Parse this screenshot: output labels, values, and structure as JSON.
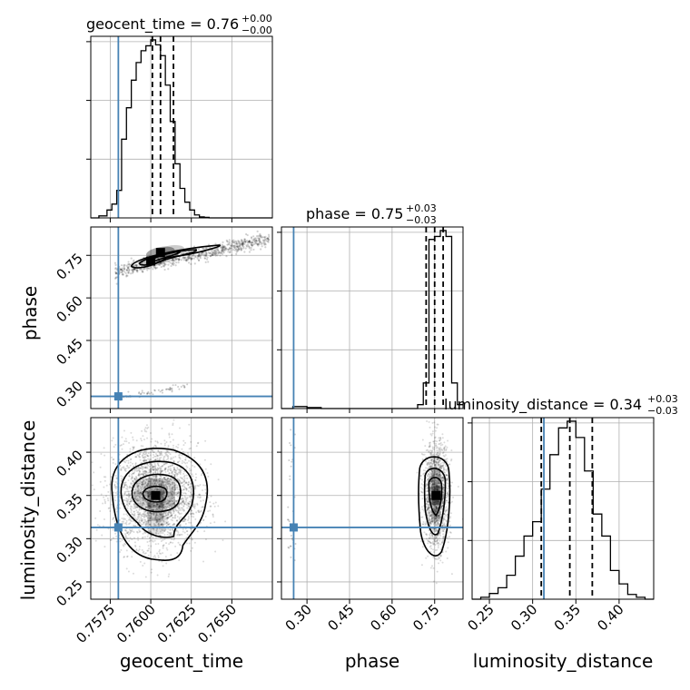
{
  "chart_data": {
    "type": "corner",
    "parameters": [
      {
        "name": "geocent_time",
        "label": "geocent_time",
        "range": [
          0.7563,
          0.7675
        ],
        "ticks": [
          0.7575,
          0.76,
          0.7625,
          0.765
        ],
        "tick_labels": [
          "0.7575",
          "0.7600",
          "0.7625",
          "0.7650"
        ],
        "truth": 0.758,
        "median": 0.7606,
        "lower": 0.7601,
        "upper": 0.7614,
        "title_value": "0.76",
        "title_plus": "+0.00",
        "title_minus": "−0.00",
        "title_prefix": "geocent_time = ",
        "hist_edges": [
          0.7563,
          0.7568,
          0.7573,
          0.7576,
          0.7579,
          0.7582,
          0.7585,
          0.7588,
          0.7591,
          0.7594,
          0.7597,
          0.76,
          0.7603,
          0.7606,
          0.7609,
          0.7612,
          0.7615,
          0.7618,
          0.7621,
          0.7624,
          0.7627,
          0.763,
          0.7633,
          0.7636,
          0.7639,
          0.7642,
          0.7647,
          0.7652,
          0.766,
          0.7675
        ],
        "hist_counts": [
          0,
          2,
          8,
          14,
          28,
          80,
          112,
          140,
          158,
          170,
          175,
          181,
          176,
          165,
          135,
          98,
          55,
          30,
          16,
          8,
          3,
          1,
          0.5,
          0,
          0,
          0,
          0,
          0,
          0
        ]
      },
      {
        "name": "phase",
        "label": "phase",
        "range": [
          0.21,
          0.85
        ],
        "ticks": [
          0.3,
          0.45,
          0.6,
          0.75
        ],
        "tick_labels": [
          "0.30",
          "0.45",
          "0.60",
          "0.75"
        ],
        "truth": 0.253,
        "median": 0.75,
        "lower": 0.72,
        "upper": 0.78,
        "title_value": "0.75",
        "title_plus": "+0.03",
        "title_minus": "−0.03",
        "title_prefix": "phase = ",
        "hist_edges": [
          0.21,
          0.25,
          0.3,
          0.35,
          0.4,
          0.45,
          0.5,
          0.55,
          0.6,
          0.65,
          0.67,
          0.69,
          0.71,
          0.73,
          0.75,
          0.77,
          0.79,
          0.81,
          0.83,
          0.85
        ],
        "hist_counts": [
          0,
          2,
          1,
          0,
          0,
          0,
          0,
          0,
          0,
          0,
          0,
          4,
          26,
          172,
          175,
          181,
          175,
          26,
          4
        ]
      },
      {
        "name": "luminosity_distance",
        "label": "luminosity_distance",
        "range": [
          0.23,
          0.44
        ],
        "ticks": [
          0.25,
          0.3,
          0.35,
          0.4
        ],
        "tick_labels": [
          "0.25",
          "0.30",
          "0.35",
          "0.40"
        ],
        "truth": 0.313,
        "median": 0.343,
        "lower": 0.31,
        "upper": 0.369,
        "title_value": "0.34",
        "title_plus": "+0.03",
        "title_minus": "−0.03",
        "title_prefix": "luminosity_distance = ",
        "hist_edges": [
          0.23,
          0.24,
          0.25,
          0.26,
          0.27,
          0.28,
          0.29,
          0.3,
          0.31,
          0.32,
          0.33,
          0.34,
          0.35,
          0.36,
          0.37,
          0.38,
          0.39,
          0.4,
          0.41,
          0.42,
          0.43,
          0.44
        ],
        "hist_counts": [
          0,
          2,
          6,
          12,
          25,
          45,
          66,
          81,
          115,
          151,
          179,
          186,
          169,
          134,
          89,
          66,
          30,
          16,
          5,
          2,
          0
        ]
      }
    ],
    "pairs": [
      {
        "x": "geocent_time",
        "y": "phase",
        "peak_x": 0.7606,
        "peak_y": 0.76,
        "secondary_peak_x": 0.76,
        "secondary_peak_y": 0.73,
        "band_slope": 12.5
      },
      {
        "x": "geocent_time",
        "y": "luminosity_distance",
        "peak_x": 0.7603,
        "peak_y": 0.35
      },
      {
        "x": "phase",
        "y": "luminosity_distance",
        "peak_x": 0.755,
        "peak_y": 0.35
      }
    ],
    "grid": true,
    "colors": {
      "truth": "#4682b4",
      "hist": "#000000",
      "points": "#808080"
    }
  }
}
